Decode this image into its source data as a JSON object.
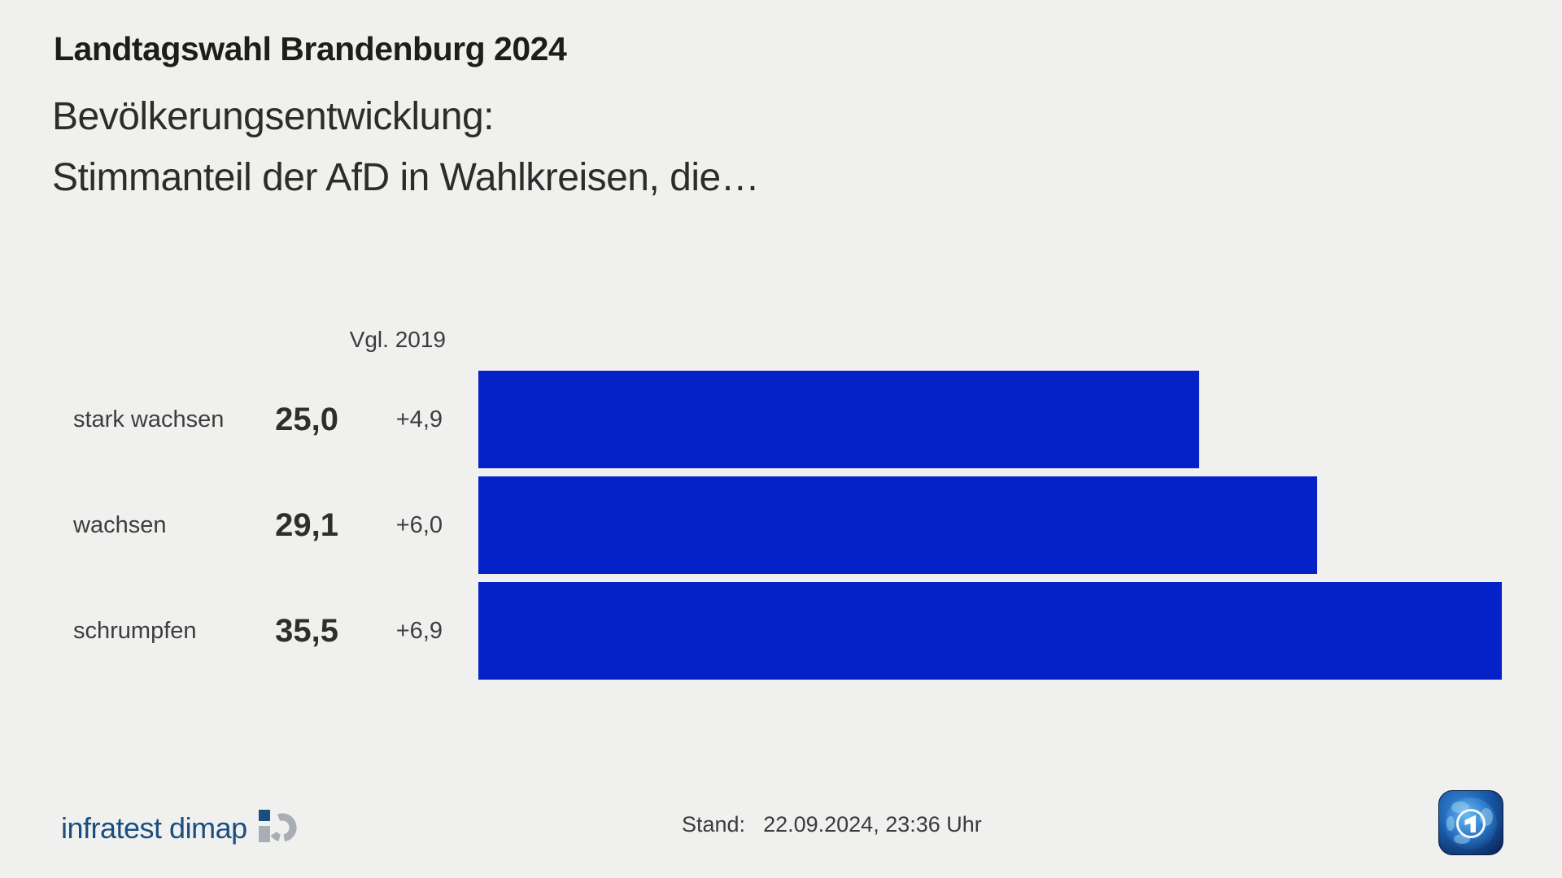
{
  "header": {
    "kicker": "Landtagswahl Brandenburg 2024",
    "title_line1": "Bevölkerungsentwicklung:",
    "title_line2": "Stimmanteil der AfD in Wahlkreisen, die…"
  },
  "chart_data": {
    "type": "bar",
    "orientation": "horizontal",
    "title": "Bevölkerungsentwicklung: Stimmanteil der AfD in Wahlkreisen, die…",
    "comparison_header": "Vgl. 2019",
    "categories": [
      "stark wachsen",
      "wachsen",
      "schrumpfen"
    ],
    "values": [
      25.0,
      29.1,
      35.5
    ],
    "value_labels": [
      "25,0",
      "29,1",
      "35,5"
    ],
    "changes_vs_2019": [
      "+4,9",
      "+6,0",
      "+6,9"
    ],
    "xlim": [
      0,
      35.5
    ],
    "xmax": 35.5,
    "grid": false,
    "legend": false,
    "bar_color": "#0522c8",
    "rows": [
      {
        "label": "stark wachsen",
        "value": 25.0,
        "value_label": "25,0",
        "change": "+4,9"
      },
      {
        "label": "wachsen",
        "value": 29.1,
        "value_label": "29,1",
        "change": "+6,0"
      },
      {
        "label": "schrumpfen",
        "value": 35.5,
        "value_label": "35,5",
        "change": "+6,9"
      }
    ]
  },
  "footer": {
    "source_text": "infratest dimap",
    "stand_label": "Stand:",
    "stand_value": "22.09.2024, 23:36 Uhr"
  },
  "colors": {
    "background": "#f0f0ef",
    "bar_blue": "#0522c8",
    "heading_text": "#1d1d1c",
    "body_text": "#3d3d3d",
    "value_text": "#2e2e2d",
    "infratest_blue": "#1b4e7f",
    "logo_gray": "#a9aeb4"
  }
}
